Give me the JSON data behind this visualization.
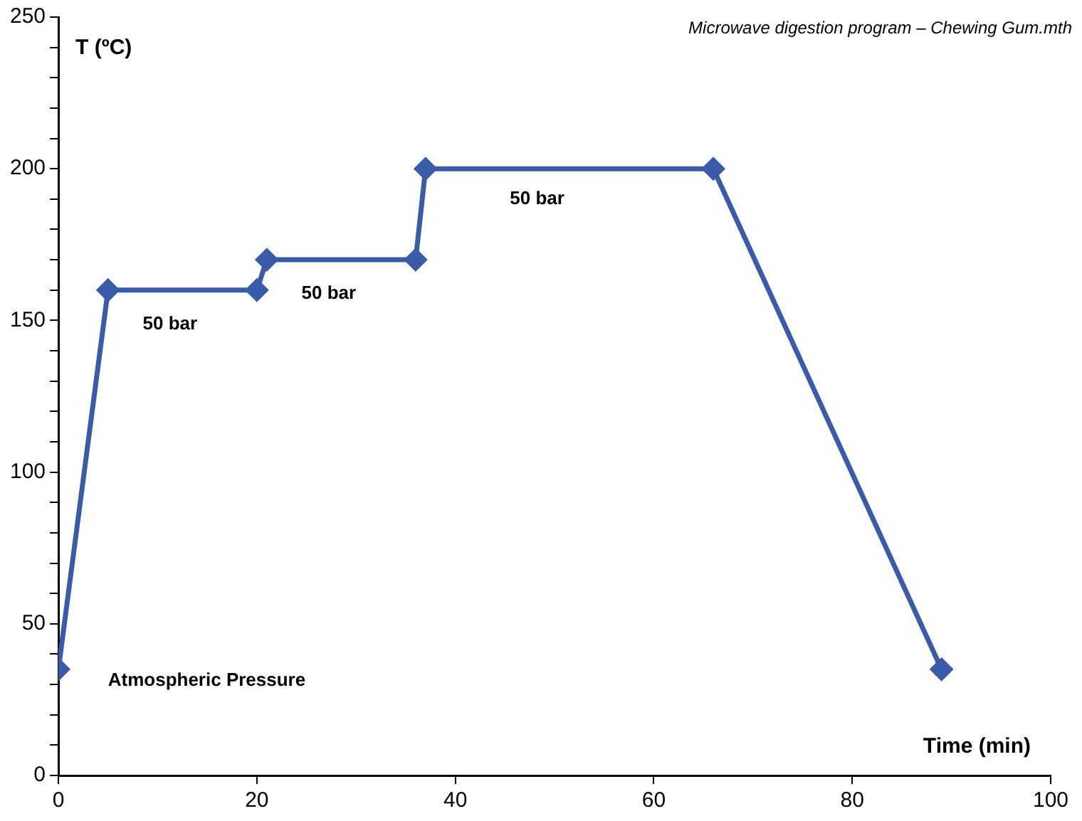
{
  "chart_data": {
    "type": "line",
    "title": "Microwave digestion program – Chewing Gum.mth",
    "xlabel": "Time (min)",
    "ylabel": "T (ºC)",
    "x": [
      0,
      5,
      20,
      21,
      36,
      37,
      66,
      89
    ],
    "series": [
      {
        "color": "#3a5ba8",
        "values": [
          35,
          160,
          160,
          170,
          170,
          200,
          200,
          35
        ]
      }
    ],
    "xlim": [
      0,
      100
    ],
    "xticks": [
      0,
      20,
      40,
      60,
      80,
      100
    ],
    "ylim": [
      0,
      250
    ],
    "yticks": [
      0,
      {
        "value": 10,
        "label": null
      },
      {
        "value": 20,
        "label": null
      },
      {
        "value": 30,
        "label": null
      },
      {
        "value": 40,
        "label": null
      },
      50,
      {
        "value": 60,
        "label": null
      },
      {
        "value": 70,
        "label": null
      },
      {
        "value": 80,
        "label": null
      },
      {
        "value": 90,
        "label": null
      },
      100,
      {
        "value": 110,
        "label": null
      },
      {
        "value": 120,
        "label": null
      },
      {
        "value": 130,
        "label": null
      },
      {
        "value": 140,
        "label": null
      },
      150,
      {
        "value": 160,
        "label": null
      },
      {
        "value": 170,
        "label": null
      },
      {
        "value": 180,
        "label": null
      },
      {
        "value": 190,
        "label": null
      },
      200,
      {
        "value": 210,
        "label": null
      },
      {
        "value": 220,
        "label": null
      },
      {
        "value": 230,
        "label": null
      },
      {
        "value": 240,
        "label": null
      },
      250
    ],
    "marker": "diamond",
    "line_style": "solid",
    "grid": false,
    "legend": false,
    "annotations": [
      "50 bar",
      "50 bar",
      "50 bar",
      "Atmospheric Pressure"
    ]
  }
}
